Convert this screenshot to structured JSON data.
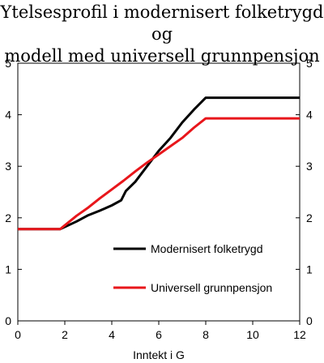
{
  "chart_data": {
    "type": "line",
    "title_lines": [
      "Ytelsesprofil i modernisert folketrygd og",
      "modell med universell grunnpensjon"
    ],
    "xlabel": "Inntekt i G",
    "ylabel": "",
    "xlim": [
      0,
      12
    ],
    "ylim": [
      0,
      5
    ],
    "xticks": [
      0,
      2,
      4,
      6,
      8,
      10,
      12
    ],
    "yticks": [
      0,
      1,
      2,
      3,
      4,
      5
    ],
    "grid": false,
    "legend_position": "lower-right",
    "series": [
      {
        "name": "Modernisert folketrygd",
        "color": "#000000",
        "x": [
          0,
          1.8,
          2.5,
          3,
          3.5,
          4,
          4.4,
          4.6,
          5,
          5.5,
          6,
          6.5,
          7,
          7.5,
          8,
          12
        ],
        "y": [
          1.78,
          1.78,
          1.93,
          2.05,
          2.14,
          2.24,
          2.34,
          2.52,
          2.7,
          3.0,
          3.3,
          3.55,
          3.85,
          4.1,
          4.33,
          4.33
        ]
      },
      {
        "name": "Universell grunnpensjon",
        "color": "#e8161b",
        "x": [
          0,
          1.8,
          2.5,
          3,
          3.5,
          4,
          4.5,
          5,
          5.5,
          6,
          6.5,
          7,
          7.5,
          8,
          12
        ],
        "y": [
          1.78,
          1.78,
          2.04,
          2.2,
          2.38,
          2.55,
          2.72,
          2.9,
          3.07,
          3.23,
          3.39,
          3.55,
          3.75,
          3.93,
          3.93
        ]
      }
    ]
  }
}
